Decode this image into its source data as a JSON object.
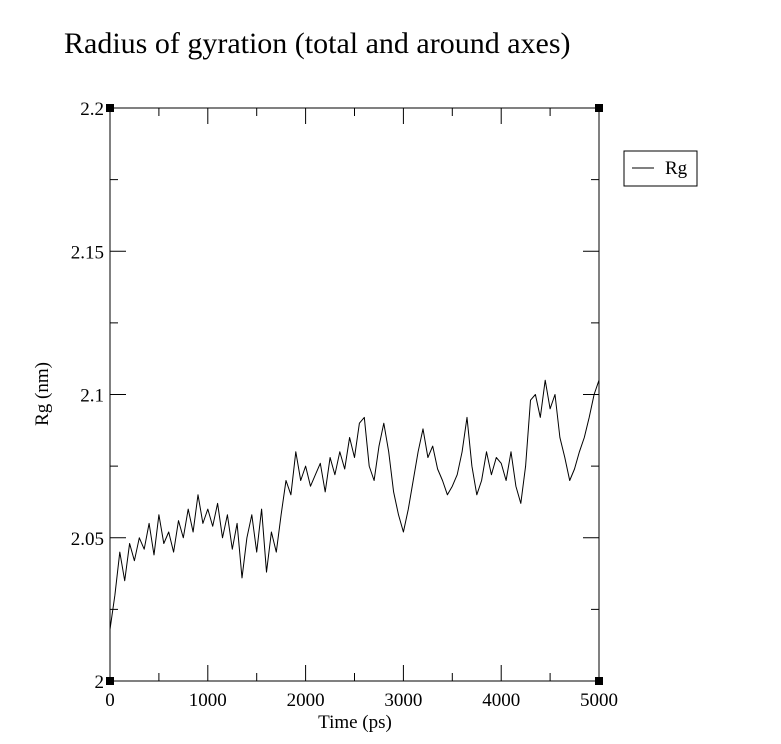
{
  "chart_data": {
    "type": "line",
    "title": "Radius of gyration (total and around axes)",
    "xlabel": "Time (ps)",
    "ylabel": "Rg (nm)",
    "xlim": [
      0,
      5000
    ],
    "ylim": [
      2,
      2.2
    ],
    "x_ticks": [
      0,
      1000,
      2000,
      3000,
      4000,
      5000
    ],
    "x_tick_labels": [
      "0",
      "1000",
      "2000",
      "3000",
      "4000",
      "5000"
    ],
    "y_ticks": [
      2,
      2.05,
      2.1,
      2.15,
      2.2
    ],
    "y_tick_labels": [
      "2",
      "2.05",
      "2.1",
      "2.15",
      "2.2"
    ],
    "grid": false,
    "legend": {
      "position": "right, outside top",
      "entries": [
        "Rg"
      ]
    },
    "series": [
      {
        "name": "Rg",
        "color": "#000000",
        "x": [
          0,
          50,
          100,
          150,
          200,
          250,
          300,
          350,
          400,
          450,
          500,
          550,
          600,
          650,
          700,
          750,
          800,
          850,
          900,
          950,
          1000,
          1050,
          1100,
          1150,
          1200,
          1250,
          1300,
          1350,
          1400,
          1450,
          1500,
          1550,
          1600,
          1650,
          1700,
          1750,
          1800,
          1850,
          1900,
          1950,
          2000,
          2050,
          2100,
          2150,
          2200,
          2250,
          2300,
          2350,
          2400,
          2450,
          2500,
          2550,
          2600,
          2650,
          2700,
          2750,
          2800,
          2850,
          2900,
          2950,
          3000,
          3050,
          3100,
          3150,
          3200,
          3250,
          3300,
          3350,
          3400,
          3450,
          3500,
          3550,
          3600,
          3650,
          3700,
          3750,
          3800,
          3850,
          3900,
          3950,
          4000,
          4050,
          4100,
          4150,
          4200,
          4250,
          4300,
          4350,
          4400,
          4450,
          4500,
          4550,
          4600,
          4650,
          4700,
          4750,
          4800,
          4850,
          4900,
          4950,
          5000
        ],
        "y": [
          2.018,
          2.03,
          2.045,
          2.035,
          2.048,
          2.042,
          2.05,
          2.046,
          2.055,
          2.044,
          2.058,
          2.048,
          2.052,
          2.045,
          2.056,
          2.05,
          2.06,
          2.052,
          2.065,
          2.055,
          2.06,
          2.054,
          2.062,
          2.05,
          2.058,
          2.046,
          2.055,
          2.036,
          2.05,
          2.058,
          2.045,
          2.06,
          2.038,
          2.052,
          2.045,
          2.058,
          2.07,
          2.065,
          2.08,
          2.07,
          2.075,
          2.068,
          2.072,
          2.076,
          2.066,
          2.078,
          2.072,
          2.08,
          2.074,
          2.085,
          2.078,
          2.09,
          2.092,
          2.075,
          2.07,
          2.082,
          2.09,
          2.08,
          2.066,
          2.058,
          2.052,
          2.06,
          2.07,
          2.08,
          2.088,
          2.078,
          2.082,
          2.074,
          2.07,
          2.065,
          2.068,
          2.072,
          2.08,
          2.092,
          2.075,
          2.065,
          2.07,
          2.08,
          2.072,
          2.078,
          2.076,
          2.07,
          2.08,
          2.068,
          2.062,
          2.075,
          2.098,
          2.1,
          2.092,
          2.105,
          2.095,
          2.1,
          2.085,
          2.078,
          2.07,
          2.074,
          2.08,
          2.085,
          2.092,
          2.1,
          2.105
        ]
      }
    ]
  }
}
